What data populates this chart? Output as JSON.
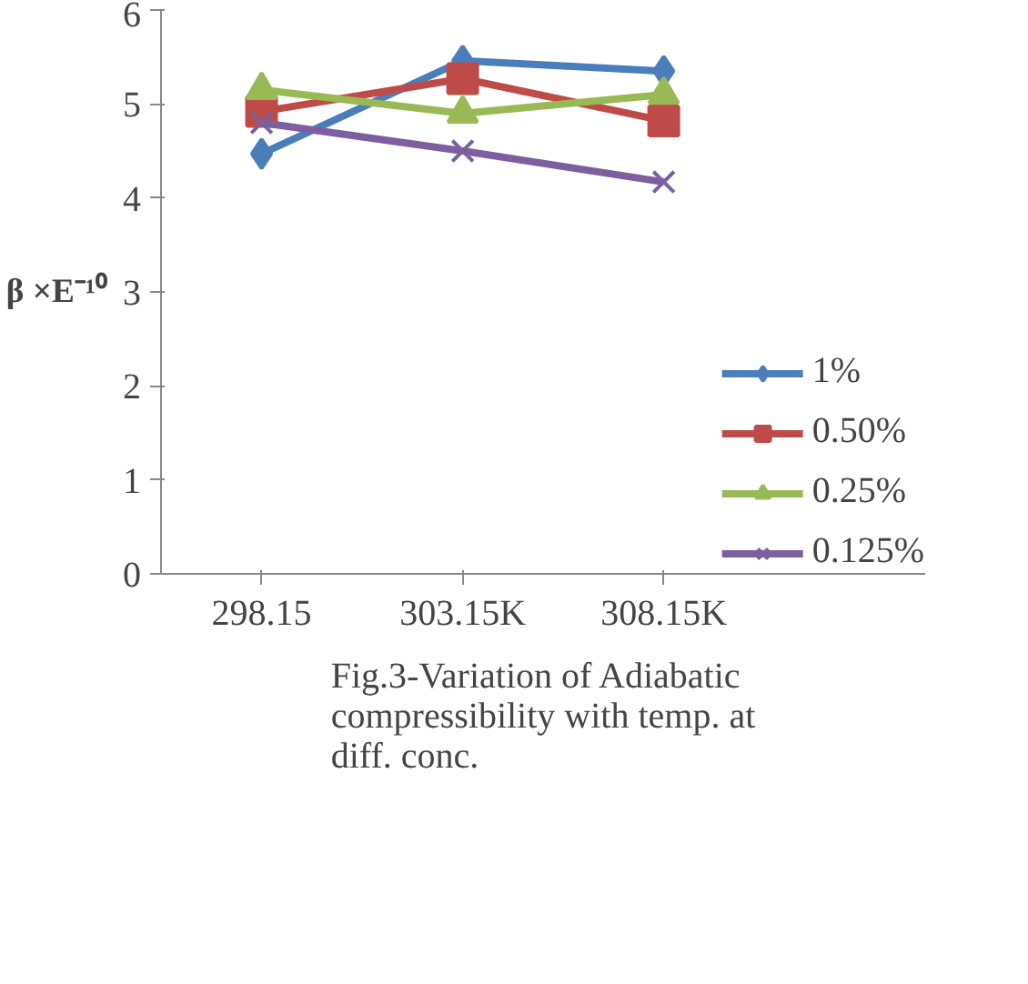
{
  "chart_data": {
    "type": "line",
    "title": "Fig.3-Variation of Adiabatic compressibility with temp. at diff. conc.",
    "ylabel": "β ×E⁻¹⁰",
    "categories": [
      "298.15",
      "303.15K",
      "308.15K"
    ],
    "series": [
      {
        "name": "1%",
        "color": "#4a7ebb",
        "marker": "diamond",
        "values": [
          4.47,
          5.46,
          5.35
        ]
      },
      {
        "name": "0.50%",
        "color": "#be4b48",
        "marker": "square",
        "values": [
          4.92,
          5.27,
          4.82
        ]
      },
      {
        "name": "0.25%",
        "color": "#98b954",
        "marker": "triangle",
        "values": [
          5.15,
          4.9,
          5.1
        ]
      },
      {
        "name": "0.125%",
        "color": "#7d5fa0",
        "marker": "cross",
        "values": [
          4.8,
          4.5,
          4.17
        ]
      }
    ],
    "ylim": [
      0,
      6
    ],
    "yticks": [
      0,
      1,
      2,
      3,
      4,
      5,
      6
    ],
    "grid": false,
    "legend": "right"
  }
}
